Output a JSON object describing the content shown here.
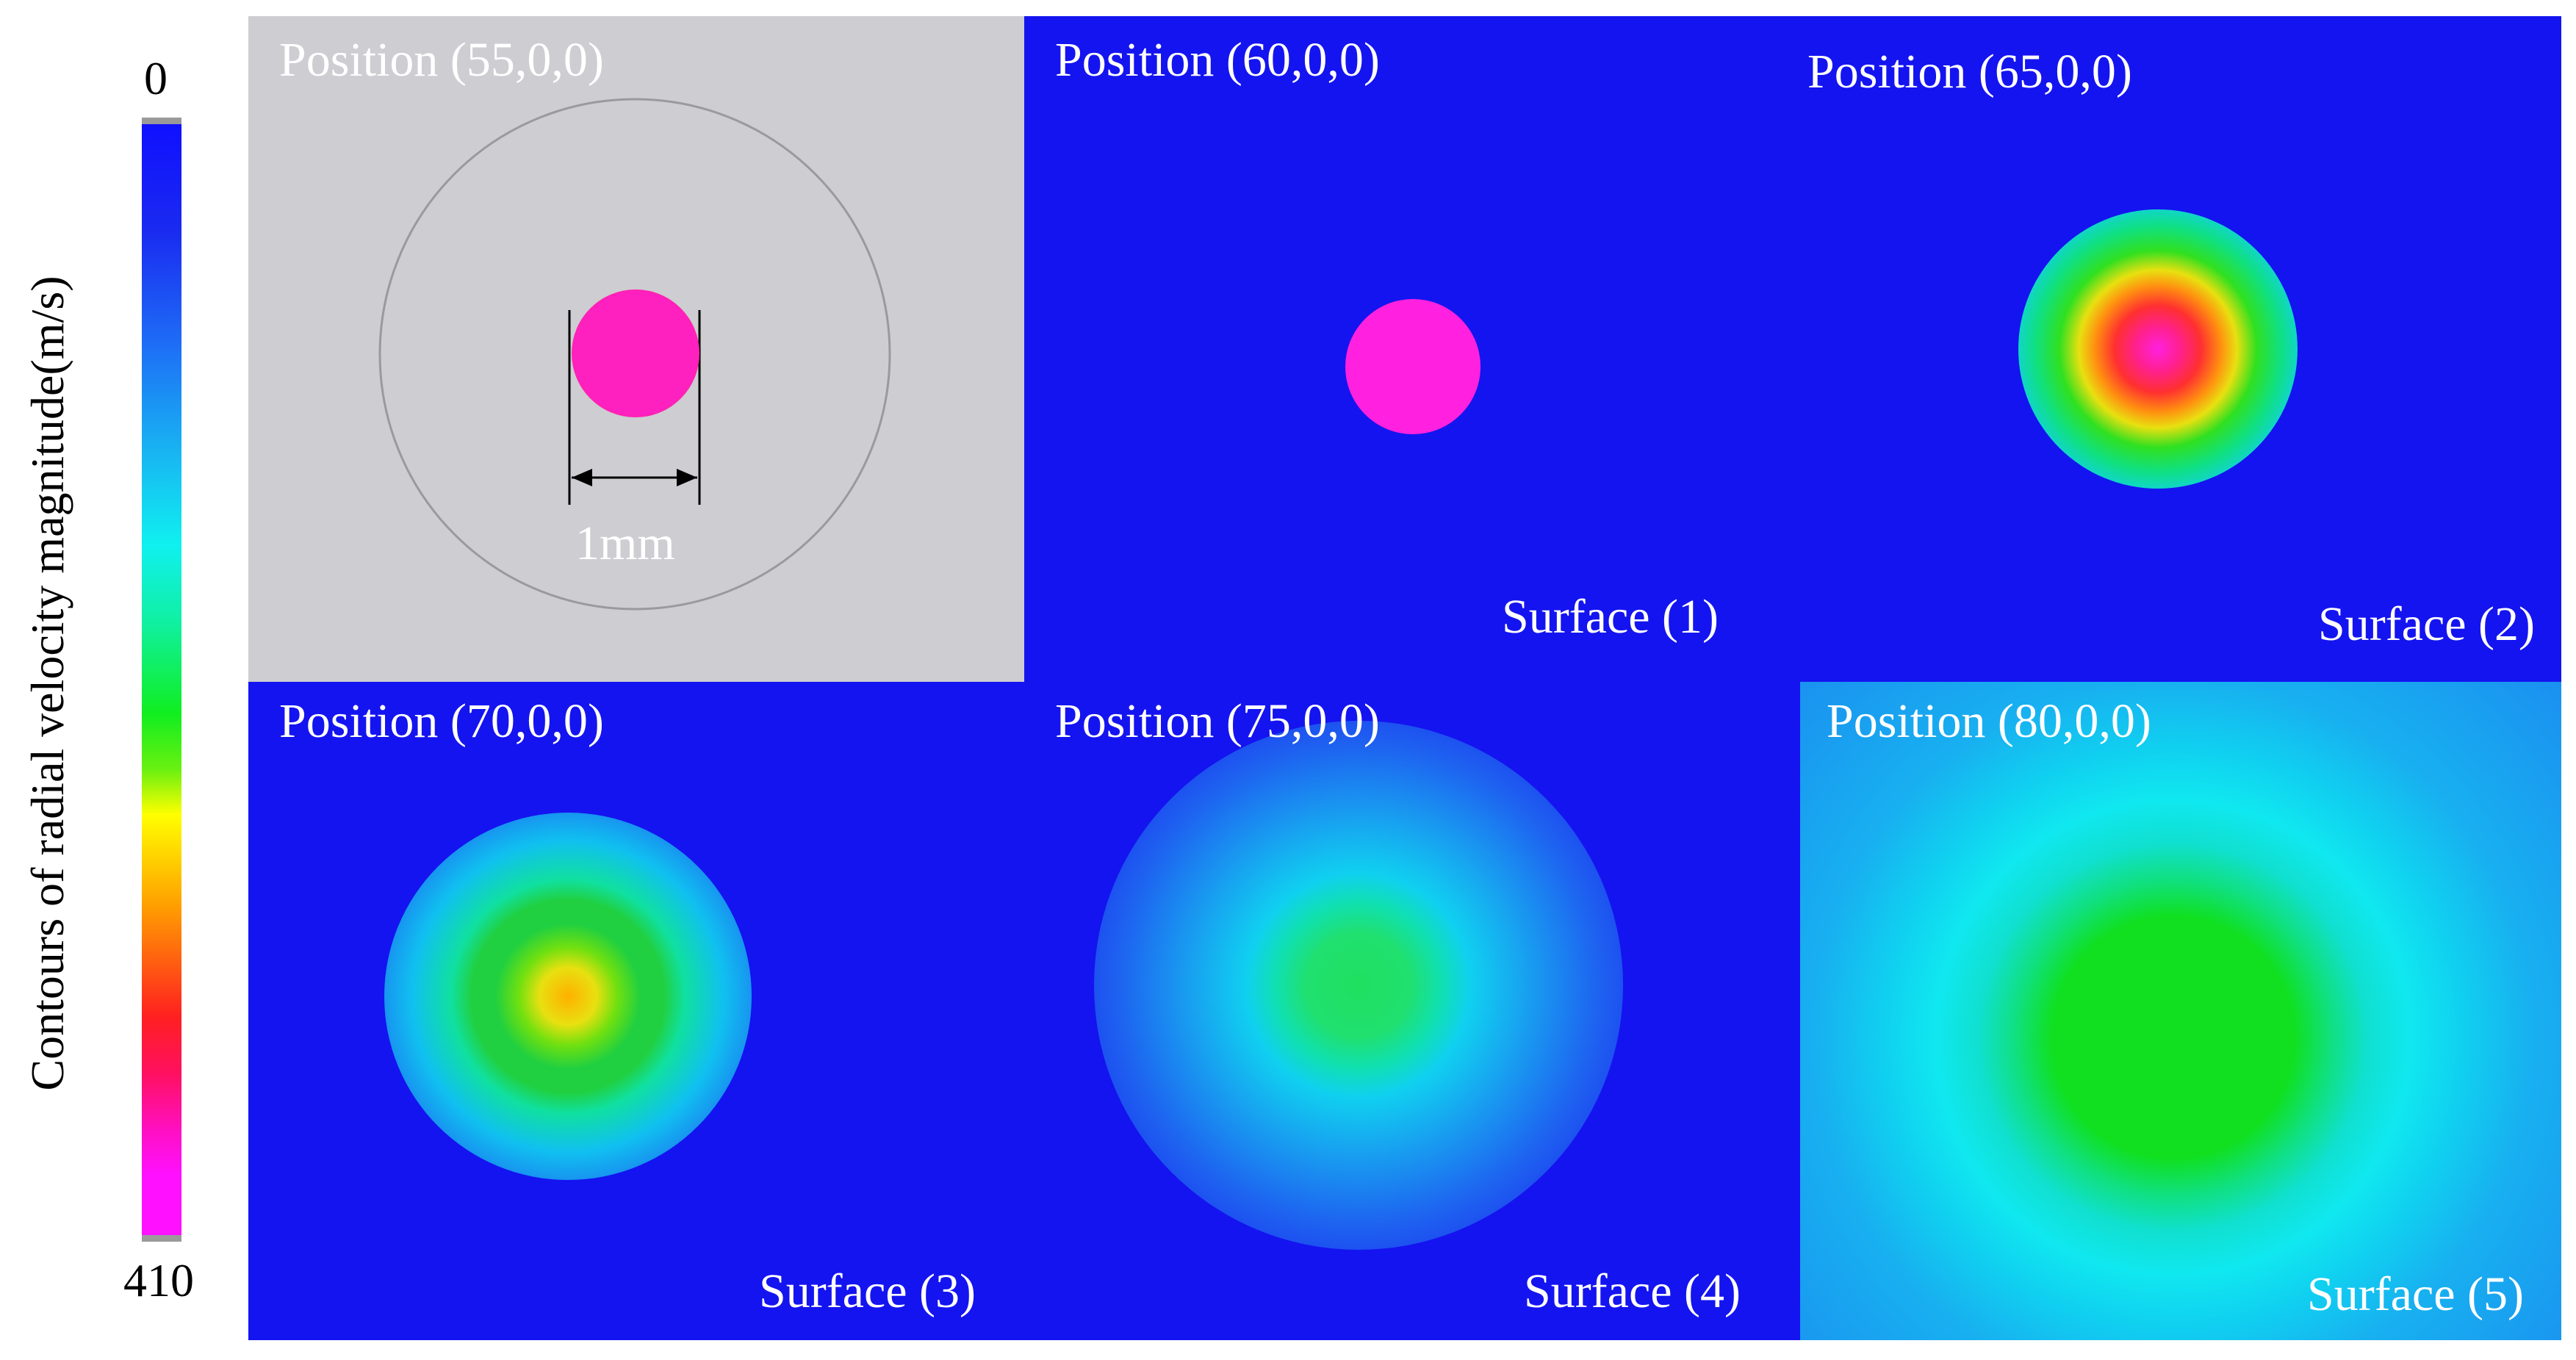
{
  "legend": {
    "title": "Contours of radial velocity magnitude(m/s)",
    "min_label": "0",
    "max_label": "410",
    "min": 0,
    "max": 410,
    "colors": [
      "#1010ff",
      "#18b6f2",
      "#10f0f0",
      "#10ee20",
      "#ffff00",
      "#ffa000",
      "#ff2020",
      "#ff10ff"
    ]
  },
  "panels": [
    {
      "title": "Position (55,0,0)",
      "subtitle": "",
      "annotation": "1mm"
    },
    {
      "title": "Position (60,0,0)",
      "subtitle": "Surface (1)"
    },
    {
      "title": "Position (65,0,0)",
      "subtitle": "Surface (2)"
    },
    {
      "title": "Position (70,0,0)",
      "subtitle": "Surface (3)"
    },
    {
      "title": "Position (75,0,0)",
      "subtitle": "Surface (4)"
    },
    {
      "title": "Position (80,0,0)",
      "subtitle": "Surface (5)"
    }
  ]
}
